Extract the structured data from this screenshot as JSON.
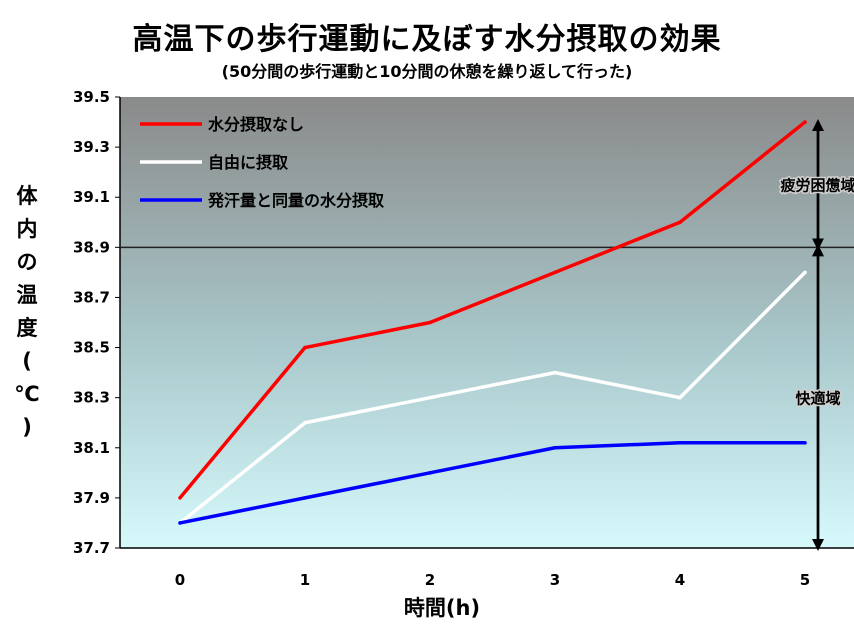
{
  "chart_data": {
    "type": "line",
    "title": "高温下の歩行運動に及ぼす水分摂取の効果",
    "subtitle": "(50分間の歩行運動と10分間の休憩を繰り返して行った)",
    "xlabel": "時間(h)",
    "ylabel": "体内の温度(℃)",
    "ylabel_chars": [
      "体",
      "内",
      "の",
      "温",
      "度",
      "(",
      "℃",
      ")"
    ],
    "x": [
      0,
      1,
      2,
      3,
      4,
      5
    ],
    "x_tick_labels": [
      "0",
      "1",
      "2",
      "3",
      "4",
      "5"
    ],
    "ylim": [
      37.7,
      39.5
    ],
    "y_ticks": [
      37.7,
      37.9,
      38.1,
      38.3,
      38.5,
      38.7,
      38.9,
      39.1,
      39.3,
      39.5
    ],
    "y_tick_labels": [
      "37.7",
      "37.9",
      "38.1",
      "38.3",
      "38.5",
      "38.7",
      "38.9",
      "39.1",
      "39.3",
      "39.5"
    ],
    "grid": false,
    "legend_position": "top-left",
    "threshold_line": 38.9,
    "series": [
      {
        "name": "水分摂取なし",
        "color": "#ff0000",
        "values": [
          37.9,
          38.5,
          38.6,
          38.8,
          39.0,
          39.4
        ]
      },
      {
        "name": "自由に摂取",
        "color": "#ffffff",
        "values": [
          37.8,
          38.2,
          38.3,
          38.4,
          38.3,
          38.8
        ]
      },
      {
        "name": "発汗量と同量の水分摂取",
        "color": "#0000ff",
        "values": [
          37.8,
          37.9,
          38.0,
          38.1,
          38.12,
          38.12
        ]
      }
    ],
    "annotations": [
      {
        "text": "疲労困憊域",
        "y_from": 38.9,
        "y_to": 39.4
      },
      {
        "text": "快適域",
        "y_from": 37.7,
        "y_to": 38.9
      }
    ]
  },
  "colors": {
    "plot_top": "#8a8a8a",
    "plot_bottom": "#d6fafc",
    "axis": "#000000"
  }
}
